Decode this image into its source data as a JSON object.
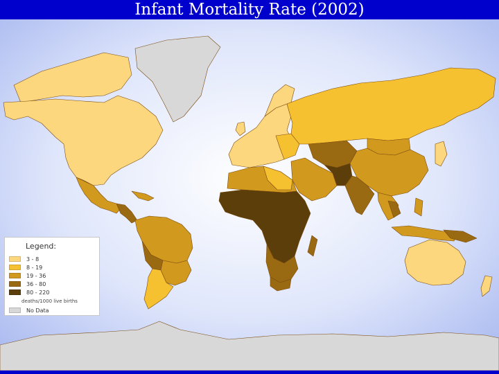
{
  "title": "Infant Mortality Rate (2002)",
  "colors": {
    "title_bar": "#0000cc",
    "ocean_center": "#ffffff",
    "ocean_edge": "#a8b8f0",
    "no_data": "#d8d8d8",
    "border": "#7a4a10"
  },
  "legend": {
    "title": "Legend:",
    "classes": [
      {
        "label": "3 - 8",
        "color": "#fcd77e"
      },
      {
        "label": "8 - 19",
        "color": "#f6c130"
      },
      {
        "label": "19 - 36",
        "color": "#d19a1e"
      },
      {
        "label": "36 - 80",
        "color": "#9a6a12"
      },
      {
        "label": "80 - 220",
        "color": "#5c3e0a"
      }
    ],
    "unit": "deaths/1000 live births",
    "no_data_label": "No Data"
  }
}
